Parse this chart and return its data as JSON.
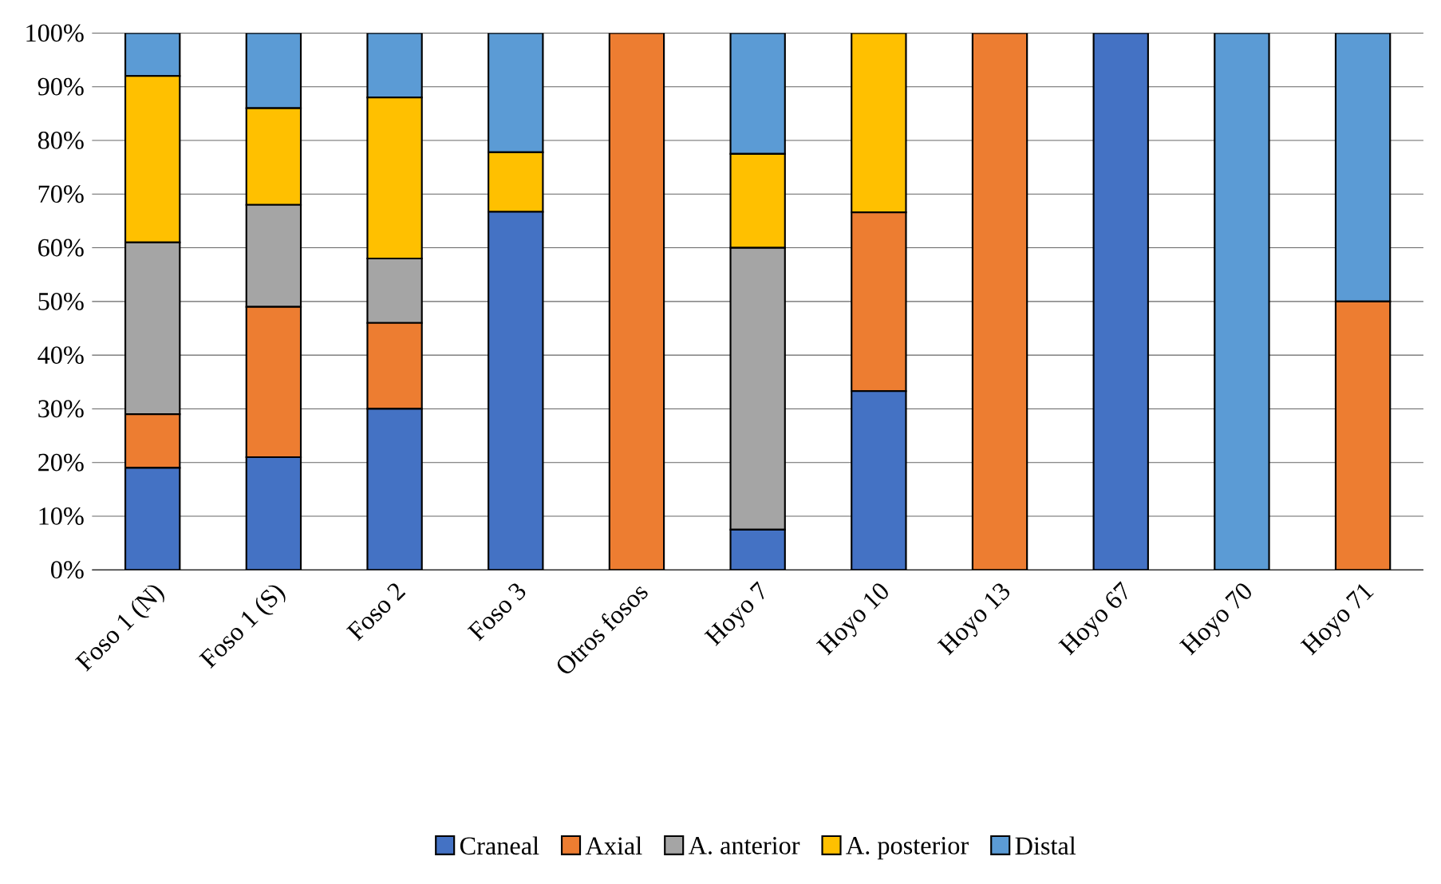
{
  "chart_data": {
    "type": "bar",
    "stacked": true,
    "categories": [
      "Foso 1 (N)",
      "Foso 1 (S)",
      "Foso 2",
      "Foso 3",
      "Otros fosos",
      "Hoyo 7",
      "Hoyo 10",
      "Hoyo 13",
      "Hoyo 67",
      "Hoyo 70",
      "Hoyo 71"
    ],
    "series": [
      {
        "name": "Craneal",
        "color": "#4472c4",
        "values": [
          19,
          21,
          30,
          66.7,
          0,
          7.5,
          33.3,
          0,
          100,
          0,
          0
        ]
      },
      {
        "name": "Axial",
        "color": "#ed7d31",
        "values": [
          10,
          28,
          16,
          0,
          100,
          0,
          33.3,
          100,
          0,
          0,
          50
        ]
      },
      {
        "name": "A. anterior",
        "color": "#a5a5a5",
        "values": [
          32,
          19,
          12,
          0,
          0,
          52.5,
          0,
          0,
          0,
          0,
          0
        ]
      },
      {
        "name": "A. posterior",
        "color": "#ffc000",
        "values": [
          31,
          18,
          30,
          11.1,
          0,
          17.5,
          33.4,
          0,
          0,
          0,
          0
        ]
      },
      {
        "name": "Distal",
        "color": "#5b9bd5",
        "values": [
          8,
          14,
          12,
          22.2,
          0,
          22.5,
          0,
          0,
          0,
          100,
          50
        ]
      }
    ],
    "ylim": [
      0,
      100
    ],
    "yticks": [
      {
        "value": 0,
        "label": "0%"
      },
      {
        "value": 10,
        "label": "10%"
      },
      {
        "value": 20,
        "label": "20%"
      },
      {
        "value": 30,
        "label": "30%"
      },
      {
        "value": 40,
        "label": "40%"
      },
      {
        "value": 50,
        "label": "50%"
      },
      {
        "value": 60,
        "label": "60%"
      },
      {
        "value": 70,
        "label": "70%"
      },
      {
        "value": 80,
        "label": "80%"
      },
      {
        "value": 90,
        "label": "90%"
      },
      {
        "value": 100,
        "label": "100%"
      }
    ],
    "grid": "y",
    "legend": "bottom"
  }
}
